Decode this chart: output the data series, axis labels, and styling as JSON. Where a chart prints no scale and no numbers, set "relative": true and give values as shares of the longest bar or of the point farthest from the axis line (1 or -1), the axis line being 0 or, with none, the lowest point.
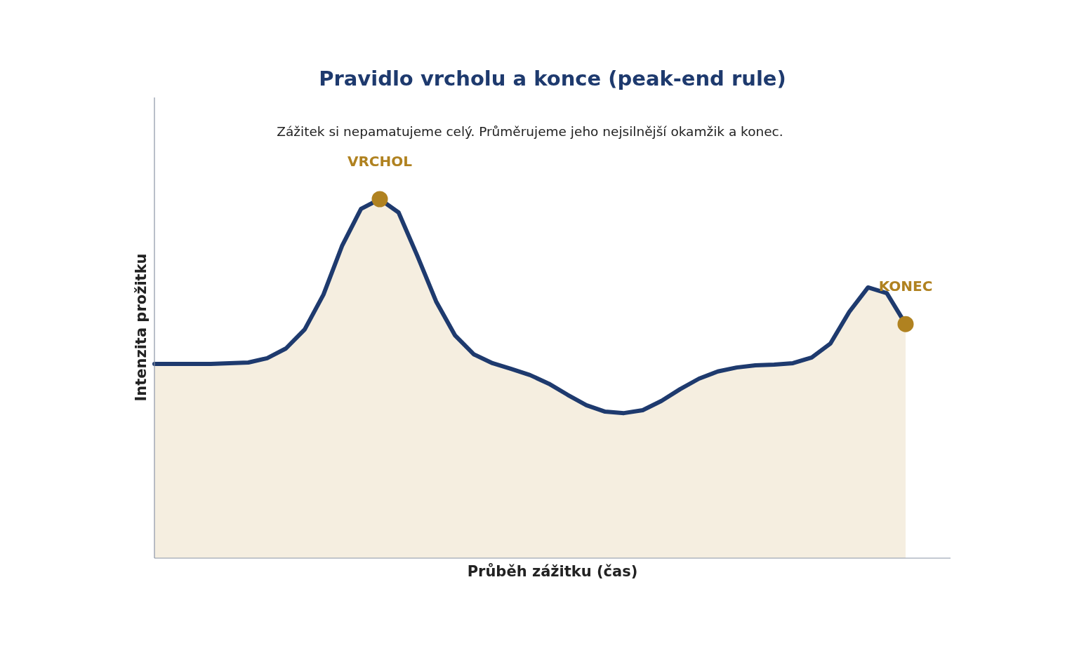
{
  "chart_data": {
    "type": "area",
    "title": "Pravidlo vrcholu a konce (peak-end rule)",
    "subtitle": "Zážitek si nepamatujeme celý. Průměrujeme jeho nejsilnější okamžik a konec.",
    "xlabel": "Průběh zážitku (čas)",
    "ylabel": "Intenzita prožitku",
    "relative": true,
    "categories": [
      null,
      null,
      null,
      null,
      null,
      null,
      null,
      null,
      null,
      null,
      null,
      null,
      null,
      null,
      null,
      null,
      null,
      null,
      null,
      null,
      null,
      null,
      null,
      null,
      null,
      null,
      null,
      null,
      null,
      null,
      null,
      null,
      null,
      null,
      null,
      null,
      null,
      null,
      null,
      null,
      null
    ],
    "series": [
      {
        "color": "#1e3a6e",
        "values": [
          0.541,
          0.541,
          0.541,
          0.541,
          0.543,
          0.545,
          0.557,
          0.584,
          0.637,
          0.734,
          0.871,
          0.973,
          1.0,
          0.963,
          0.842,
          0.715,
          0.621,
          0.568,
          0.543,
          0.527,
          0.51,
          0.486,
          0.455,
          0.426,
          0.408,
          0.404,
          0.412,
          0.438,
          0.471,
          0.5,
          0.52,
          0.531,
          0.537,
          0.539,
          0.543,
          0.559,
          0.598,
          0.686,
          0.754,
          0.738,
          0.652
        ]
      }
    ],
    "annotations": [
      {
        "text": "VRCHOL",
        "y": 1.0
      },
      {
        "text": "KONEC",
        "y": 0.652
      }
    ]
  }
}
